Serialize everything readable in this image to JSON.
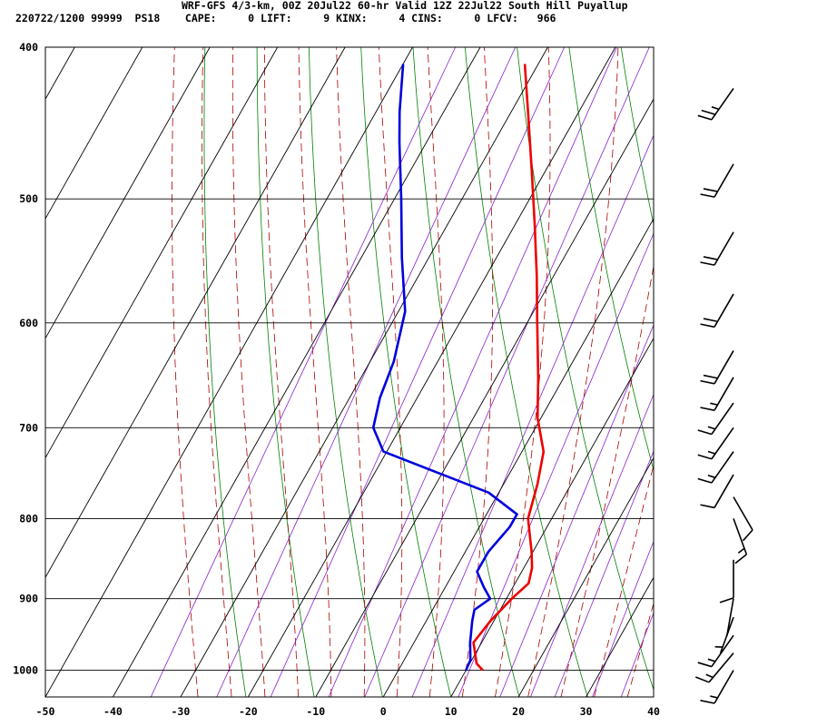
{
  "header": {
    "line1": "WRF-GFS 4/3-km, 00Z 20Jul22 60-hr Valid 12Z 22Jul22 South Hill Puyallup",
    "line2": "220722/1200 99999  PS18    CAPE:     0 LIFT:     9 KINX:     4 CINS:     0 LFCV:   966"
  },
  "chart_data": {
    "type": "line",
    "subtype": "skew-T log-p sounding",
    "title": "WRF-GFS 4/3-km, 00Z 20Jul22 60-hr Valid 12Z 22Jul22 South Hill Puyallup",
    "xlabel": "",
    "ylabel": "",
    "xlim": [
      -50,
      40
    ],
    "ylim": [
      1040,
      400
    ],
    "y_scale": "log (pressure, hPa)",
    "x_ticks": [
      -50,
      -40,
      -30,
      -20,
      -10,
      0,
      10,
      20,
      30,
      40
    ],
    "y_ticks": [
      400,
      500,
      600,
      700,
      800,
      900,
      1000
    ],
    "grid": true,
    "series": [
      {
        "color": "#ee0000",
        "points": [
          {
            "p": 1000,
            "t": 12.5
          },
          {
            "p": 990,
            "t": 11
          },
          {
            "p": 960,
            "t": 8.8
          },
          {
            "p": 930,
            "t": 9.5
          },
          {
            "p": 900,
            "t": 10.8
          },
          {
            "p": 880,
            "t": 12
          },
          {
            "p": 860,
            "t": 11.2
          },
          {
            "p": 840,
            "t": 9.8
          },
          {
            "p": 800,
            "t": 6.5
          },
          {
            "p": 760,
            "t": 5
          },
          {
            "p": 725,
            "t": 3.2
          },
          {
            "p": 690,
            "t": -0.5
          },
          {
            "p": 650,
            "t": -3.8
          },
          {
            "p": 600,
            "t": -8.5
          },
          {
            "p": 560,
            "t": -12.5
          },
          {
            "p": 520,
            "t": -17
          },
          {
            "p": 480,
            "t": -22
          },
          {
            "p": 440,
            "t": -27.5
          },
          {
            "p": 410,
            "t": -32
          }
        ]
      },
      {
        "color": "#0000dd",
        "points": [
          {
            "p": 1000,
            "t": 10
          },
          {
            "p": 985,
            "t": 9.8
          },
          {
            "p": 960,
            "t": 8.3
          },
          {
            "p": 930,
            "t": 6.8
          },
          {
            "p": 915,
            "t": 6.2
          },
          {
            "p": 900,
            "t": 7.6
          },
          {
            "p": 885,
            "t": 5.7
          },
          {
            "p": 865,
            "t": 3.4
          },
          {
            "p": 840,
            "t": 3.4
          },
          {
            "p": 810,
            "t": 4.5
          },
          {
            "p": 795,
            "t": 4.5
          },
          {
            "p": 770,
            "t": -1.5
          },
          {
            "p": 725,
            "t": -20.5
          },
          {
            "p": 700,
            "t": -24
          },
          {
            "p": 670,
            "t": -25.5
          },
          {
            "p": 635,
            "t": -26.5
          },
          {
            "p": 590,
            "t": -29
          },
          {
            "p": 545,
            "t": -34
          },
          {
            "p": 500,
            "t": -39
          },
          {
            "p": 460,
            "t": -44
          },
          {
            "p": 440,
            "t": -46.5
          },
          {
            "p": 410,
            "t": -50
          }
        ]
      }
    ],
    "wind_barbs": [
      {
        "p": 1000,
        "speed_kt": 15,
        "dir_deg": 210
      },
      {
        "p": 975,
        "speed_kt": 15,
        "dir_deg": 220
      },
      {
        "p": 950,
        "speed_kt": 15,
        "dir_deg": 215
      },
      {
        "p": 925,
        "speed_kt": 5,
        "dir_deg": 200
      },
      {
        "p": 900,
        "speed_kt": 0,
        "dir_deg": 190
      },
      {
        "p": 850,
        "speed_kt": 10,
        "dir_deg": 180
      },
      {
        "p": 800,
        "speed_kt": 15,
        "dir_deg": 160
      },
      {
        "p": 775,
        "speed_kt": 10,
        "dir_deg": 150
      },
      {
        "p": 750,
        "speed_kt": 10,
        "dir_deg": 210
      },
      {
        "p": 725,
        "speed_kt": 15,
        "dir_deg": 215
      },
      {
        "p": 700,
        "speed_kt": 15,
        "dir_deg": 215
      },
      {
        "p": 675,
        "speed_kt": 15,
        "dir_deg": 215
      },
      {
        "p": 650,
        "speed_kt": 15,
        "dir_deg": 210
      },
      {
        "p": 625,
        "speed_kt": 20,
        "dir_deg": 210
      },
      {
        "p": 575,
        "speed_kt": 20,
        "dir_deg": 210
      },
      {
        "p": 525,
        "speed_kt": 20,
        "dir_deg": 210
      },
      {
        "p": 475,
        "speed_kt": 20,
        "dir_deg": 210
      },
      {
        "p": 425,
        "speed_kt": 25,
        "dir_deg": 215
      }
    ]
  },
  "colors": {
    "temperature": "#ee0000",
    "dewpoint": "#0000dd",
    "dry_adiabats": "#008000",
    "moist_adiabats": "#aa0000",
    "mixing_ratio": "#8822cc",
    "grid": "#000000"
  }
}
